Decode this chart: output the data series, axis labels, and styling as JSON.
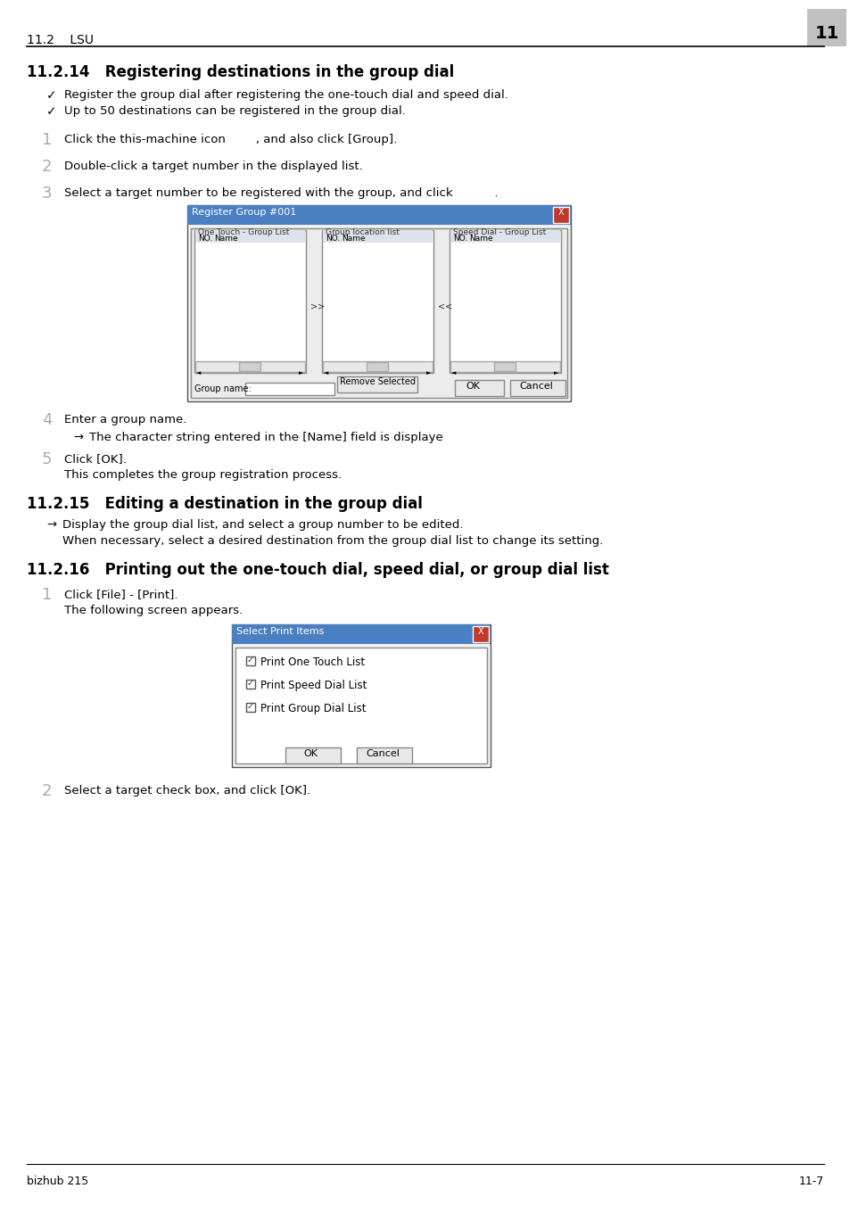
{
  "page_bg": "#ffffff",
  "header_text": "11.2    LSU",
  "header_number": "11",
  "header_number_bg": "#c0c0c0",
  "footer_left": "bizhub 215",
  "footer_right": "11-7",
  "section_14_title": "11.2.14   Registering destinations in the group dial",
  "section_15_title": "11.2.15   Editing a destination in the group dial",
  "section_16_title": "11.2.16   Printing out the one-touch dial, speed dial, or group dial list",
  "bullet_1": "Register the group dial after registering the one-touch dial and speed dial.",
  "bullet_2": "Up to 50 destinations can be registered in the group dial.",
  "step1_num": "1",
  "step1_text": "Click the this-machine icon        , and also click [Group].",
  "step2_num": "2",
  "step2_text": "Double-click a target number in the displayed list.",
  "step3_num": "3",
  "step3_text": "Select a target number to be registered with the group, and click           .",
  "step4_num": "4",
  "step4_text": "Enter a group name.",
  "step4_arrow": "The character string entered in the [Name] field is displayed as a destination name on the Display.",
  "step5_num": "5",
  "step5_text": "Click [OK].",
  "step5_sub": "This completes the group registration process.",
  "section15_arrow": "Display the group dial list, and select a group number to be edited.",
  "section15_sub": "When necessary, select a desired destination from the group dial list to change its setting.",
  "section16_step1_num": "1",
  "section16_step1_text": "Click [File] - [Print].",
  "section16_step1_sub": "The following screen appears.",
  "section16_step2_num": "2",
  "section16_step2_text": "Select a target check box, and click [OK].",
  "dialog1_title": "Register Group #001",
  "dialog1_col1": "One Touch - Group List",
  "dialog1_col2": "Group location list",
  "dialog1_col3": "Speed Dial - Group List",
  "dialog1_no": "NO.",
  "dialog1_name": "Name",
  "dialog1_remove": "Remove Selected",
  "dialog1_ok": "OK",
  "dialog1_cancel": "Cancel",
  "dialog1_group_name_label": "Group name:",
  "dialog2_title": "Select Print Items",
  "dialog2_check1": "Print One Touch List",
  "dialog2_check2": "Print Speed Dial List",
  "dialog2_check3": "Print Group Dial List",
  "dialog2_ok": "OK",
  "dialog2_cancel": "Cancel"
}
